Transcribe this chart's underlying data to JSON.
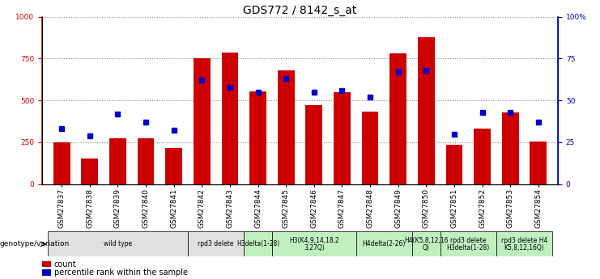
{
  "title": "GDS772 / 8142_s_at",
  "samples": [
    "GSM27837",
    "GSM27838",
    "GSM27839",
    "GSM27840",
    "GSM27841",
    "GSM27842",
    "GSM27843",
    "GSM27844",
    "GSM27845",
    "GSM27846",
    "GSM27847",
    "GSM27848",
    "GSM27849",
    "GSM27850",
    "GSM27851",
    "GSM27852",
    "GSM27853",
    "GSM27854"
  ],
  "counts": [
    250,
    155,
    275,
    275,
    215,
    750,
    785,
    555,
    680,
    470,
    550,
    435,
    780,
    880,
    235,
    330,
    430,
    255
  ],
  "percentiles": [
    33,
    29,
    42,
    37,
    32,
    62,
    58,
    55,
    63,
    55,
    56,
    52,
    67,
    68,
    30,
    43,
    43,
    37
  ],
  "bar_color": "#cc0000",
  "dot_color": "#0000cc",
  "ylim_left": [
    0,
    1000
  ],
  "ylim_right": [
    0,
    100
  ],
  "yticks_left": [
    0,
    250,
    500,
    750,
    1000
  ],
  "ytick_labels_left": [
    "0",
    "250",
    "500",
    "750",
    "1000"
  ],
  "yticks_right": [
    0,
    25,
    50,
    75,
    100
  ],
  "ytick_labels_right": [
    "0",
    "25",
    "50",
    "75",
    "100%"
  ],
  "group_defs": [
    {
      "label": "wild type",
      "start": 0,
      "end": 4,
      "color": "#e0e0e0"
    },
    {
      "label": "rpd3 delete",
      "start": 5,
      "end": 6,
      "color": "#e0e0e0"
    },
    {
      "label": "H3delta(1-28)",
      "start": 7,
      "end": 7,
      "color": "#c0f0c0"
    },
    {
      "label": "H3(K4,9,14,18,2\n3,27Q)",
      "start": 8,
      "end": 10,
      "color": "#c0f0c0"
    },
    {
      "label": "H4delta(2-26)",
      "start": 11,
      "end": 12,
      "color": "#c0f0c0"
    },
    {
      "label": "H4(K5,8,12,16\nQ)",
      "start": 13,
      "end": 13,
      "color": "#c0f0c0"
    },
    {
      "label": "rpd3 delete\nH3delta(1-28)",
      "start": 14,
      "end": 15,
      "color": "#c0f0c0"
    },
    {
      "label": "rpd3 delete H4\nK5,8,12,16Q)",
      "start": 16,
      "end": 17,
      "color": "#c0f0c0"
    }
  ],
  "xlabel_genotype": "genotype/variation",
  "legend_count": "count",
  "legend_percentile": "percentile rank within the sample",
  "bg_color": "#ffffff",
  "grid_color": "#888888",
  "title_fontsize": 10,
  "tick_fontsize": 6.5
}
